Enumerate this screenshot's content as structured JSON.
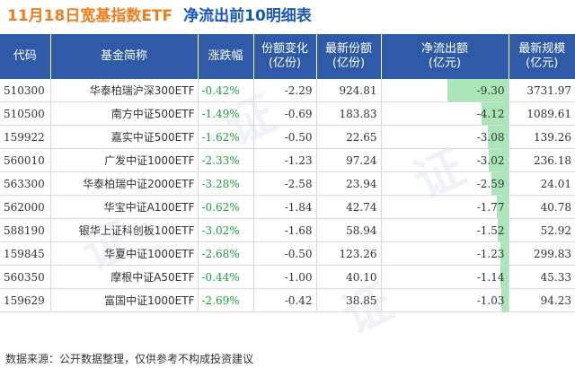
{
  "title": {
    "date": "11月18日宽基指数ETF",
    "subtitle": "净流出前10明细表"
  },
  "headers": {
    "code": "代码",
    "name": "基金简称",
    "change": "涨跌幅",
    "share_change": [
      "份额变化",
      "(亿份)"
    ],
    "latest_share": [
      "最新份额",
      "(亿份)"
    ],
    "net_outflow": [
      "净流出额",
      "(亿元)"
    ],
    "latest_scale": [
      "最新规模",
      "(亿元)"
    ]
  },
  "rows": [
    {
      "code": "510300",
      "name": "华泰柏瑞沪深300ETF",
      "change": "-0.42%",
      "share_change": "-2.29",
      "latest_share": "924.81",
      "net_outflow": "-9.30",
      "outflow_value": 9.3,
      "latest_scale": "3731.97"
    },
    {
      "code": "510500",
      "name": "南方中证500ETF",
      "change": "-1.49%",
      "share_change": "-0.69",
      "latest_share": "183.83",
      "net_outflow": "-4.12",
      "outflow_value": 4.12,
      "latest_scale": "1089.61"
    },
    {
      "code": "159922",
      "name": "嘉实中证500ETF",
      "change": "-1.62%",
      "share_change": "-0.50",
      "latest_share": "22.65",
      "net_outflow": "-3.08",
      "outflow_value": 3.08,
      "latest_scale": "139.26"
    },
    {
      "code": "560010",
      "name": "广发中证1000ETF",
      "change": "-2.33%",
      "share_change": "-1.23",
      "latest_share": "97.24",
      "net_outflow": "-3.02",
      "outflow_value": 3.02,
      "latest_scale": "236.18"
    },
    {
      "code": "563300",
      "name": "华泰柏瑞中证2000ETF",
      "change": "-3.28%",
      "share_change": "-2.58",
      "latest_share": "23.94",
      "net_outflow": "-2.59",
      "outflow_value": 2.59,
      "latest_scale": "24.01"
    },
    {
      "code": "562000",
      "name": "华宝中证A100ETF",
      "change": "-0.62%",
      "share_change": "-1.84",
      "latest_share": "42.74",
      "net_outflow": "-1.77",
      "outflow_value": 1.77,
      "latest_scale": "40.78"
    },
    {
      "code": "588190",
      "name": "银华上证科创板100ETF",
      "change": "-3.02%",
      "share_change": "-1.68",
      "latest_share": "58.94",
      "net_outflow": "-1.52",
      "outflow_value": 1.52,
      "latest_scale": "52.92"
    },
    {
      "code": "159845",
      "name": "华夏中证1000ETF",
      "change": "-2.68%",
      "share_change": "-0.50",
      "latest_share": "123.26",
      "net_outflow": "-1.23",
      "outflow_value": 1.23,
      "latest_scale": "299.83"
    },
    {
      "code": "560350",
      "name": "摩根中证A50ETF",
      "change": "-0.44%",
      "share_change": "-1.00",
      "latest_share": "40.10",
      "net_outflow": "-1.14",
      "outflow_value": 1.14,
      "latest_scale": "45.33"
    },
    {
      "code": "159629",
      "name": "富国中证1000ETF",
      "change": "-2.69%",
      "share_change": "-0.42",
      "latest_share": "38.85",
      "net_outflow": "-1.03",
      "outflow_value": 1.03,
      "latest_scale": "94.23"
    }
  ],
  "outflow_max": 9.3,
  "source": "数据来源：公开数据整理，仅供参考不构成投资建议",
  "colors": {
    "header_bg": "#2e5aa8",
    "title_orange": "#ee7d1c",
    "title_blue": "#1a57b8",
    "change_green": "#1f9e3d",
    "bar_green": "#abe6b8"
  }
}
